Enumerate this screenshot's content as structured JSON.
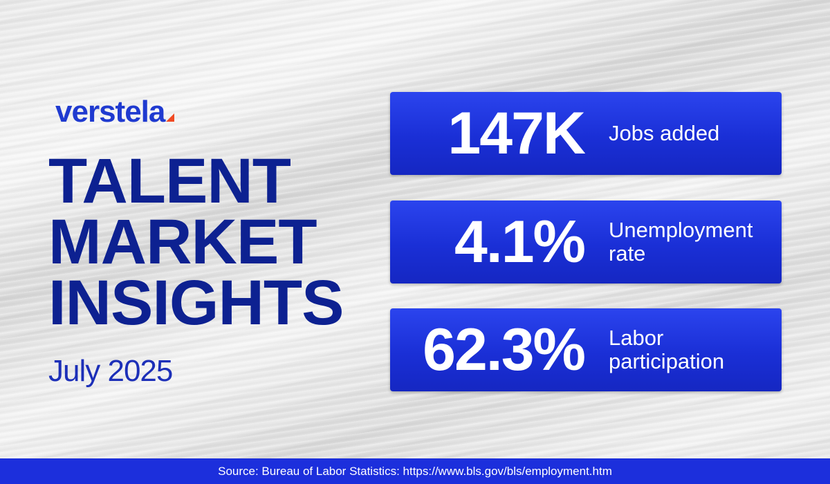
{
  "logo": {
    "text": "verstela"
  },
  "title": {
    "lines": [
      "TALENT",
      "MARKET",
      "INSIGHTS"
    ]
  },
  "date": "July 2025",
  "stats": [
    {
      "value": "147K",
      "label_lines": [
        "Jobs added"
      ]
    },
    {
      "value": "4.1%",
      "label_lines": [
        "Unemployment",
        "rate"
      ]
    },
    {
      "value": "62.3%",
      "label_lines": [
        "Labor",
        "participation"
      ]
    }
  ],
  "footer": {
    "source": "Source: Bureau of Labor Statistics: https://www.bls.gov/bls/employment.htm"
  },
  "colors": {
    "brand_blue": "#1f3ad0",
    "title_navy": "#0d2191",
    "card_blue": "#1a2fd6",
    "accent_orange": "#f04a23",
    "footer_blue": "#1c2fdc"
  }
}
